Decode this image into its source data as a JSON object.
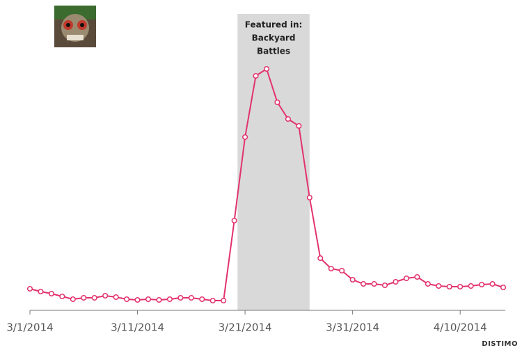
{
  "chart_data": {
    "type": "line",
    "x": [
      "3/1/2014",
      "3/2/2014",
      "3/3/2014",
      "3/4/2014",
      "3/5/2014",
      "3/6/2014",
      "3/7/2014",
      "3/8/2014",
      "3/9/2014",
      "3/10/2014",
      "3/11/2014",
      "3/12/2014",
      "3/13/2014",
      "3/14/2014",
      "3/15/2014",
      "3/16/2014",
      "3/17/2014",
      "3/18/2014",
      "3/19/2014",
      "3/20/2014",
      "3/21/2014",
      "3/22/2014",
      "3/23/2014",
      "3/24/2014",
      "3/25/2014",
      "3/26/2014",
      "3/27/2014",
      "3/28/2014",
      "3/29/2014",
      "3/30/2014",
      "3/31/2014",
      "4/1/2014",
      "4/2/2014",
      "4/3/2014",
      "4/4/2014",
      "4/5/2014",
      "4/6/2014",
      "4/7/2014",
      "4/8/2014",
      "4/9/2014",
      "4/10/2014",
      "4/11/2014",
      "4/12/2014",
      "4/13/2014",
      "4/14/2014"
    ],
    "values": [
      31,
      27,
      24,
      20,
      16,
      18,
      18,
      21,
      19,
      16,
      15,
      16,
      15,
      16,
      18,
      18,
      16,
      14,
      14,
      129,
      249,
      337,
      347,
      299,
      275,
      265,
      162,
      75,
      60,
      57,
      44,
      38,
      38,
      36,
      41,
      46,
      48,
      38,
      35,
      34,
      34,
      35,
      37,
      38,
      33
    ],
    "color": "#e2326c",
    "xlim": [
      "3/1/2014",
      "4/14/2014"
    ],
    "xticks": [
      "3/1/2014",
      "3/11/2014",
      "3/21/2014",
      "3/31/2014",
      "4/10/2014"
    ],
    "ylim": [
      0,
      360
    ],
    "highlight": {
      "range": [
        "3/21/2014",
        "3/27/2014"
      ],
      "lines": [
        "Featured in:",
        "Backyard",
        "Battles"
      ],
      "color": "#d9d9d9"
    },
    "brand": "DISTIMO"
  }
}
